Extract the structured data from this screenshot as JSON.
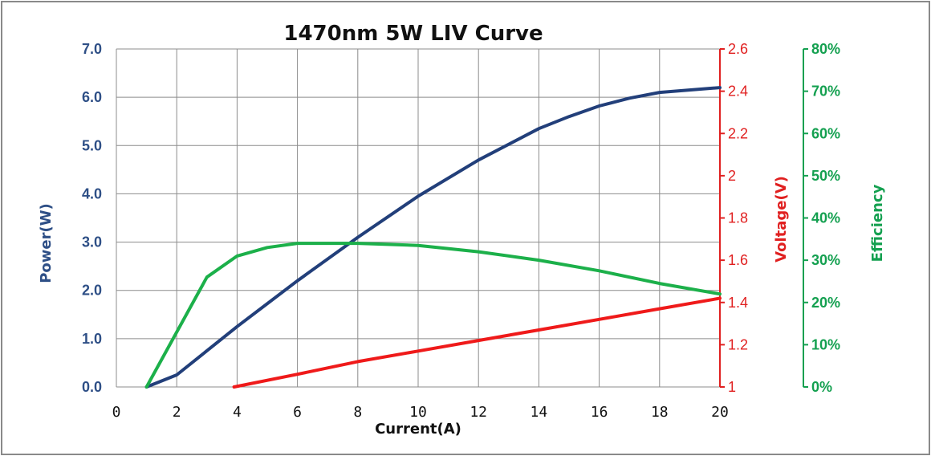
{
  "chart_data": {
    "type": "line",
    "title": "1470nm 5W LIV Curve",
    "xlabel": "Current(A)",
    "xlim": [
      0,
      20
    ],
    "x_ticks": [
      "0",
      "2",
      "4",
      "6",
      "8",
      "10",
      "12",
      "14",
      "16",
      "18",
      "20"
    ],
    "grid": true,
    "axes": {
      "power": {
        "label": "Power(W)",
        "position": "left",
        "color": "#2e4f86",
        "range": [
          0,
          7
        ],
        "ticks": [
          "0.0",
          "1.0",
          "2.0",
          "3.0",
          "4.0",
          "5.0",
          "6.0",
          "7.0"
        ]
      },
      "voltage": {
        "label": "Voltage(V)",
        "position": "right",
        "color": "#e02020",
        "range": [
          1,
          2.6
        ],
        "ticks": [
          "1",
          "1.2",
          "1.4",
          "1.6",
          "1.8",
          "2",
          "2.2",
          "2.4",
          "2.6"
        ]
      },
      "efficiency": {
        "label": "Efficiency",
        "position": "right-outer",
        "color": "#14a050",
        "range": [
          0,
          80
        ],
        "ticks": [
          "0%",
          "10%",
          "20%",
          "30%",
          "40%",
          "50%",
          "60%",
          "70%",
          "80%"
        ]
      }
    },
    "series": [
      {
        "axis": "power",
        "color": "#223f7a",
        "x": [
          1,
          2,
          4,
          6,
          8,
          10,
          12,
          14,
          15,
          16,
          17,
          18,
          20
        ],
        "y": [
          0,
          0.25,
          1.25,
          2.2,
          3.1,
          3.95,
          4.7,
          5.35,
          5.6,
          5.82,
          5.98,
          6.1,
          6.2
        ]
      },
      {
        "axis": "voltage",
        "color": "#ef1a1a",
        "x": [
          3.9,
          6,
          8,
          10,
          12,
          14,
          16,
          18,
          20
        ],
        "y": [
          1.0,
          1.06,
          1.12,
          1.17,
          1.22,
          1.27,
          1.32,
          1.37,
          1.42
        ]
      },
      {
        "axis": "efficiency",
        "color": "#1cb04a",
        "x": [
          1,
          2,
          3,
          4,
          5,
          6,
          7,
          8,
          10,
          12,
          14,
          16,
          18,
          20
        ],
        "y": [
          0,
          13,
          26,
          31,
          33,
          34,
          34,
          34,
          33.5,
          32,
          30,
          27.5,
          24.5,
          22
        ]
      }
    ]
  }
}
